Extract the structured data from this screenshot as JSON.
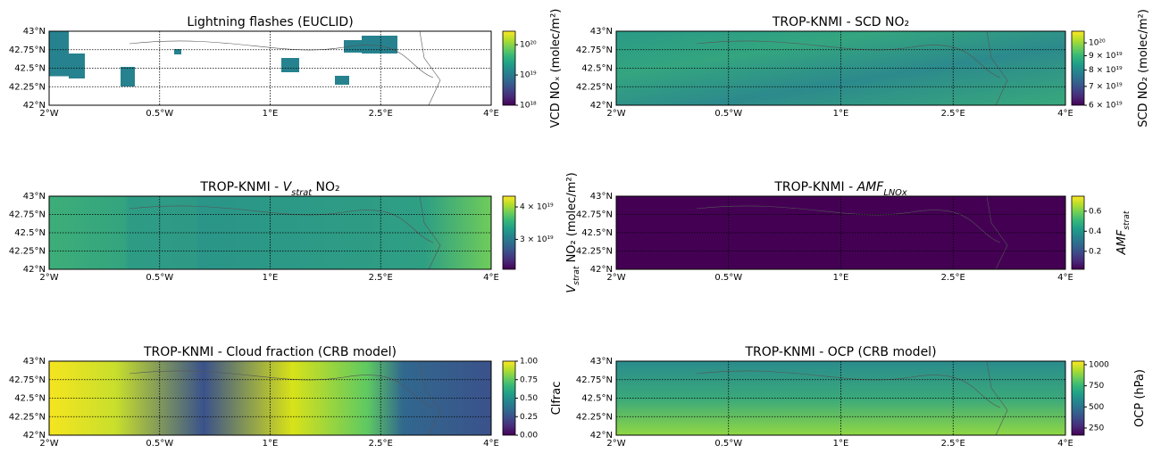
{
  "map_axes": {
    "xlim": [
      -2,
      4
    ],
    "xticks": [
      {
        "value": -2,
        "label": "2°W"
      },
      {
        "value": -0.5,
        "label": "0.5°W"
      },
      {
        "value": 1,
        "label": "1°E"
      },
      {
        "value": 2.5,
        "label": "2.5°E"
      },
      {
        "value": 4,
        "label": "4°E"
      }
    ],
    "ylim": [
      42,
      43
    ],
    "yticks": [
      {
        "value": 42,
        "label": "42°N"
      },
      {
        "value": 42.25,
        "label": "42.25°N"
      },
      {
        "value": 42.5,
        "label": "42.5°N"
      },
      {
        "value": 42.75,
        "label": "42.75°N"
      },
      {
        "value": 43,
        "label": "43°N"
      }
    ]
  },
  "colormap": "viridis",
  "panels": [
    {
      "title": [
        {
          "t": "Lightning flashes (EUCLID)"
        }
      ],
      "colorbar": {
        "log": true,
        "lim": [
          1e+18,
          2.8e+20
        ],
        "ticks": [
          {
            "value": 1e+18,
            "label": "10¹⁸"
          },
          {
            "value": 1e+19,
            "label": "10¹⁹"
          },
          {
            "value": 1e+20,
            "label": "10²⁰"
          }
        ],
        "label": [
          {
            "t": "VCD NOₓ (molec/m²)"
          }
        ]
      }
    },
    {
      "title": [
        {
          "t": "TROP-KNMI - SCD NO₂"
        }
      ],
      "colorbar": {
        "log": true,
        "lim": [
          6e+19,
          1.1e+20
        ],
        "ticks": [
          {
            "value": 6e+19,
            "label": "6 × 10¹⁹"
          },
          {
            "value": 7e+19,
            "label": "7 × 10¹⁹"
          },
          {
            "value": 8e+19,
            "label": "8 × 10¹⁹"
          },
          {
            "value": 9e+19,
            "label": "9 × 10¹⁹"
          },
          {
            "value": 1e+20,
            "label": "10²⁰"
          }
        ],
        "label": [
          {
            "t": "SCD NO₂ (molec/m²)"
          }
        ]
      }
    },
    {
      "title": [
        {
          "t": "TROP-KNMI - "
        },
        {
          "t": "V",
          "style": "italic"
        },
        {
          "t": "strat",
          "style": "italic-sub"
        },
        {
          "t": " NO₂"
        }
      ],
      "colorbar": {
        "log": true,
        "lim": [
          2.3e+19,
          4.4e+19
        ],
        "ticks": [
          {
            "value": 3e+19,
            "label": "3 × 10¹⁹"
          },
          {
            "value": 4e+19,
            "label": "4 × 10¹⁹"
          }
        ],
        "label": [
          {
            "t": "V",
            "style": "italic"
          },
          {
            "t": "strat",
            "style": "italic-sub"
          },
          {
            "t": " NO₂ (molec/m²)"
          }
        ]
      }
    },
    {
      "title": [
        {
          "t": "TROP-KNMI - "
        },
        {
          "t": "AMF",
          "style": "italic"
        },
        {
          "t": "LNOx",
          "style": "italic-sub"
        }
      ],
      "colorbar": {
        "log": false,
        "lim": [
          0.02,
          0.75
        ],
        "ticks": [
          0.2,
          0.4,
          0.6
        ],
        "label": [
          {
            "t": "AMF",
            "style": "italic"
          },
          {
            "t": "strat",
            "style": "italic-sub"
          }
        ]
      }
    },
    {
      "title": [
        {
          "t": "TROP-KNMI - Cloud fraction (CRB model)"
        }
      ],
      "colorbar": {
        "log": false,
        "lim": [
          0,
          1
        ],
        "ticks": [
          {
            "value": 0,
            "label": "0.00"
          },
          {
            "value": 0.25,
            "label": "0.25"
          },
          {
            "value": 0.5,
            "label": "0.50"
          },
          {
            "value": 0.75,
            "label": "0.75"
          },
          {
            "value": 1,
            "label": "1.00"
          }
        ],
        "label": [
          {
            "t": "Clfrac"
          }
        ]
      }
    },
    {
      "title": [
        {
          "t": "TROP-KNMI - OCP (CRB model)"
        }
      ],
      "colorbar": {
        "log": false,
        "lim": [
          165,
          1042
        ],
        "ticks": [
          250,
          500,
          750,
          1000
        ],
        "label": [
          {
            "t": "OCP (hPa)"
          }
        ]
      }
    }
  ]
}
